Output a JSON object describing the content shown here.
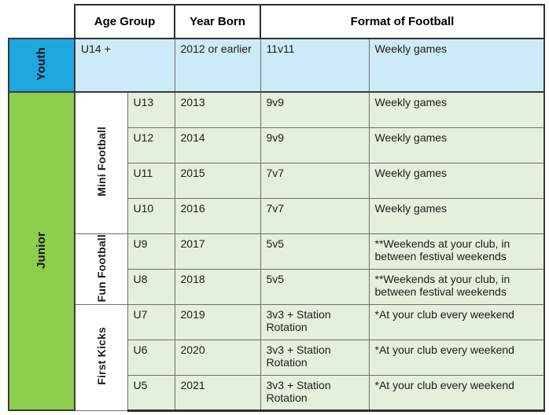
{
  "header": {
    "age_group": "Age Group",
    "year_born": "Year Born",
    "format_of_football": "Format of Football"
  },
  "youth": {
    "label": "Youth",
    "age": "U14 +",
    "year": "2012 or earlier",
    "format": "11v11",
    "description": "Weekly games"
  },
  "junior": {
    "label": "Junior",
    "categories": [
      {
        "label": "Mini Football",
        "rowspan": 4
      },
      {
        "label": "Fun Football",
        "rowspan": 2
      },
      {
        "label": "First Kicks",
        "rowspan": 3
      }
    ],
    "rows": [
      {
        "age": "U13",
        "year": "2013",
        "format": "9v9",
        "description": "Weekly games"
      },
      {
        "age": "U12",
        "year": "2014",
        "format": "9v9",
        "description": "Weekly games"
      },
      {
        "age": "U11",
        "year": "2015",
        "format": "7v7",
        "description": "Weekly games"
      },
      {
        "age": "U10",
        "year": "2016",
        "format": "7v7",
        "description": "Weekly games"
      },
      {
        "age": "U9",
        "year": "2017",
        "format": "5v5",
        "description": "**Weekends at your club, in between festival weekends"
      },
      {
        "age": "U8",
        "year": "2018",
        "format": "5v5",
        "description": "**Weekends at your club, in between festival weekends"
      },
      {
        "age": "U7",
        "year": "2019",
        "format": "3v3 + Station Rotation",
        "description": "*At your club every weekend"
      },
      {
        "age": "U6",
        "year": "2020",
        "format": "3v3 + Station Rotation",
        "description": "*At your club every weekend"
      },
      {
        "age": "U5",
        "year": "2021",
        "format": "3v3 + Station Rotation",
        "description": "*At your club every weekend"
      }
    ]
  },
  "colors": {
    "youth_accent": "#1fa8e0",
    "youth_cell_bg": "#cdeaf9",
    "junior_accent": "#8dce4c",
    "junior_cell_bg": "#e4f0db",
    "border_dark": "#3a3a3a",
    "border_inner": "#6e6e6e"
  }
}
